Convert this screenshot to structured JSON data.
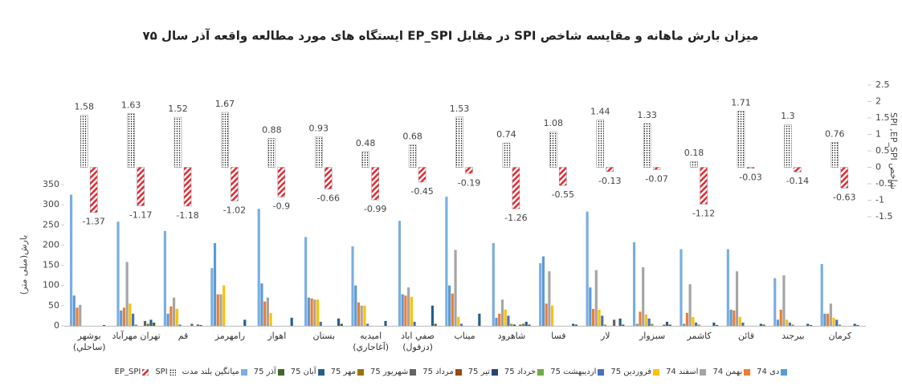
{
  "chart_data": {
    "type": "bar",
    "title": "میزان بارش ماهانه و مقایسه شاخص SPI در مقابل EP_SPI ایستگاه های مورد مطالعه واقعه آذر سال ۷۵",
    "y_label": "بارش(میلی متر)",
    "y2_label": "شاخص SPI ,EP_SPI",
    "categories": [
      "بوشهر (ساحلي)",
      "تهران مهرآباد",
      "قم",
      "رامهرمز",
      "اهواز",
      "بستان",
      "اميديه (آغاجاري)",
      "صفي اباد (دزفول)",
      "ميناب",
      "شاهرود",
      "فسا",
      "لار",
      "سبزوار",
      "کاشمر",
      "قائن",
      "بيرجند",
      "کرمان"
    ],
    "series": [
      {
        "name": "دی 74",
        "color": "#5b9bd5",
        "values": [
          75,
          38,
          30,
          205,
          105,
          70,
          100,
          78,
          100,
          20,
          172,
          95,
          5,
          5,
          40,
          15,
          30
        ]
      },
      {
        "name": "بهمن 74",
        "color": "#ed7d31",
        "values": [
          45,
          45,
          48,
          78,
          60,
          68,
          58,
          75,
          80,
          30,
          55,
          42,
          35,
          32,
          38,
          40,
          30
        ]
      },
      {
        "name": "اسفند 74",
        "color": "#a5a5a5",
        "values": [
          52,
          158,
          70,
          78,
          70,
          65,
          50,
          95,
          188,
          65,
          135,
          138,
          145,
          103,
          135,
          125,
          55
        ]
      },
      {
        "name": "فروردین 75",
        "color": "#ffc000",
        "values": [
          0,
          55,
          42,
          100,
          32,
          65,
          50,
          72,
          22,
          40,
          50,
          40,
          28,
          22,
          22,
          15,
          20
        ]
      },
      {
        "name": "اردیبهشت 75",
        "color": "#4472c4",
        "values": [
          0,
          30,
          3,
          0,
          0,
          10,
          5,
          10,
          5,
          25,
          0,
          25,
          18,
          8,
          8,
          8,
          15
        ]
      },
      {
        "name": "خرداد 75",
        "color": "#70ad47",
        "values": [
          0,
          3,
          0,
          0,
          0,
          0,
          0,
          0,
          0,
          5,
          0,
          3,
          5,
          3,
          0,
          3,
          3
        ]
      },
      {
        "name": "تیر 75",
        "color": "#264478",
        "values": [
          0,
          0,
          0,
          0,
          0,
          0,
          0,
          0,
          0,
          3,
          0,
          0,
          0,
          0,
          0,
          0,
          0
        ]
      },
      {
        "name": "مرداد 75",
        "color": "#9e480e",
        "values": [
          0,
          0,
          0,
          0,
          0,
          0,
          0,
          0,
          0,
          0,
          0,
          0,
          0,
          0,
          0,
          0,
          0
        ]
      },
      {
        "name": "شهریور 75",
        "color": "#636363",
        "values": [
          0,
          12,
          5,
          0,
          0,
          0,
          0,
          0,
          0,
          3,
          0,
          15,
          0,
          0,
          0,
          0,
          0
        ]
      },
      {
        "name": "مهر 75",
        "color": "#997300",
        "values": [
          0,
          5,
          0,
          0,
          0,
          0,
          0,
          0,
          0,
          5,
          0,
          0,
          3,
          0,
          0,
          0,
          0
        ]
      },
      {
        "name": "آبان 75",
        "color": "#255e91",
        "values": [
          2,
          15,
          3,
          15,
          20,
          18,
          12,
          50,
          30,
          10,
          5,
          18,
          10,
          8,
          5,
          5,
          5
        ]
      },
      {
        "name": "آذر 75",
        "color": "#43682b",
        "values": [
          0,
          8,
          2,
          0,
          0,
          5,
          0,
          5,
          0,
          3,
          3,
          3,
          3,
          2,
          3,
          2,
          2
        ]
      },
      {
        "name": "میانگین بلند مدت",
        "color": "#7aaee0",
        "values": [
          325,
          258,
          235,
          143,
          290,
          220,
          197,
          260,
          320,
          205,
          155,
          283,
          207,
          190,
          190,
          118,
          153
        ]
      },
      {
        "name": "SPI",
        "color": "#000000",
        "pattern": "dots",
        "axis": "y2",
        "values": [
          1.58,
          1.63,
          1.52,
          1.67,
          0.88,
          0.93,
          0.48,
          0.68,
          1.53,
          0.74,
          1.08,
          1.44,
          1.33,
          0.18,
          1.71,
          1.3,
          0.76
        ]
      },
      {
        "name": "EP_SPI",
        "color": "#e8202a",
        "pattern": "hatch",
        "axis": "y2",
        "values": [
          -1.37,
          -1.17,
          -1.18,
          -1.02,
          -0.9,
          -0.66,
          -0.99,
          -0.45,
          -0.19,
          -1.26,
          -0.55,
          -0.13,
          -0.07,
          -1.12,
          -0.03,
          -0.14,
          -0.63
        ]
      }
    ],
    "ylim": [
      0,
      350
    ],
    "yticks": [
      0,
      50,
      100,
      150,
      200,
      250,
      300,
      350
    ],
    "y2lim": [
      -1.5,
      2.5
    ],
    "y2ticks": [
      -1.5,
      -1,
      -0.5,
      0,
      0.5,
      1,
      1.5,
      2,
      2.5
    ]
  }
}
